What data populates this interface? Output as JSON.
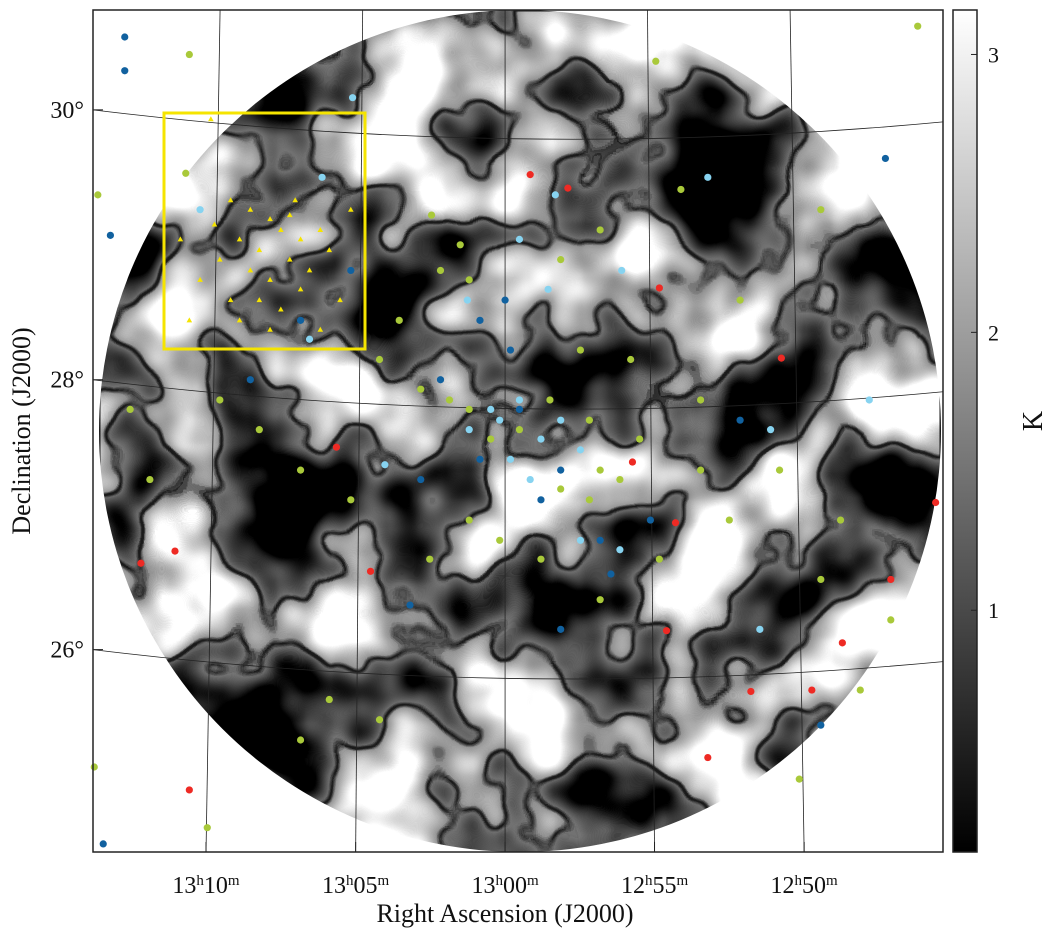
{
  "chart_data": {
    "type": "scatter",
    "x_label": "Right Ascension (J2000)",
    "y_label": "Declination (J2000)",
    "xlim": [
      13.2297,
      12.7559
    ],
    "ylim": [
      24.5,
      30.74
    ],
    "xticks": [
      {
        "value": 13.1667,
        "label": "13h10m"
      },
      {
        "value": 13.0833,
        "label": "13h05m"
      },
      {
        "value": 13.0,
        "label": "13h00m"
      },
      {
        "value": 12.9167,
        "label": "12h55m"
      },
      {
        "value": 12.8333,
        "label": "12h50m"
      }
    ],
    "yticks": [
      {
        "value": 26,
        "label": "26°"
      },
      {
        "value": 28,
        "label": "28°"
      },
      {
        "value": 30,
        "label": "30°"
      }
    ],
    "grid": true,
    "colorbar": {
      "label": "K",
      "lim": [
        0.13,
        3.16
      ],
      "ticks": [
        1,
        2,
        3
      ]
    },
    "series": [
      {
        "color": "#a9c93a",
        "marker": "circle",
        "x": [
          13.176,
          12.77,
          12.916,
          13.178,
          13.227,
          13.041,
          13.025,
          13.036,
          13.02,
          13.059,
          13.07,
          13.047,
          13.031,
          13.02,
          13.008,
          12.992,
          12.975,
          12.953,
          12.947,
          12.936,
          12.969,
          12.953,
          12.925,
          12.891,
          12.875,
          12.914,
          12.947,
          12.98,
          13.003,
          13.02,
          13.042,
          13.086,
          13.114,
          13.137,
          13.159,
          13.198,
          13.209,
          13.098,
          13.07,
          13.114,
          13.166,
          13.229,
          12.836,
          12.802,
          12.785,
          12.824,
          12.813,
          12.847,
          12.891,
          12.93,
          12.958,
          12.969,
          12.947,
          12.902,
          12.824,
          12.869
        ],
        "y": [
          30.41,
          30.62,
          30.36,
          29.53,
          29.37,
          29.22,
          29.0,
          28.81,
          28.74,
          28.44,
          28.15,
          27.93,
          27.85,
          27.78,
          27.56,
          27.63,
          27.85,
          27.7,
          27.33,
          27.26,
          27.19,
          27.11,
          27.56,
          27.33,
          26.96,
          26.67,
          26.37,
          26.67,
          26.81,
          26.96,
          26.67,
          27.11,
          27.33,
          27.63,
          27.85,
          27.26,
          27.78,
          25.63,
          25.48,
          25.33,
          24.68,
          25.13,
          25.04,
          25.7,
          26.22,
          26.52,
          26.96,
          27.33,
          27.85,
          28.15,
          28.22,
          28.89,
          29.11,
          29.41,
          29.26,
          28.59
        ]
      },
      {
        "color": "#87d3f0",
        "marker": "circle",
        "x": [
          13.085,
          13.102,
          12.887,
          12.972,
          12.992,
          12.935,
          13.021,
          12.976,
          12.992,
          13.003,
          13.02,
          12.98,
          12.997,
          13.008,
          12.969,
          12.958,
          12.986,
          12.936,
          12.958,
          12.852,
          12.797,
          12.858,
          13.109,
          13.17,
          13.067
        ],
        "y": [
          30.09,
          29.5,
          29.5,
          29.37,
          29.04,
          28.81,
          28.59,
          28.67,
          27.85,
          27.7,
          27.63,
          27.56,
          27.41,
          27.78,
          27.7,
          27.48,
          27.26,
          26.74,
          26.81,
          27.63,
          27.85,
          26.15,
          28.3,
          29.26,
          27.37
        ]
      },
      {
        "color": "#11619f",
        "marker": "circle",
        "x": [
          13.212,
          13.212,
          13.22,
          12.788,
          13.0,
          12.997,
          13.014,
          13.036,
          12.992,
          12.969,
          13.014,
          13.047,
          12.947,
          12.869,
          12.824,
          13.224,
          12.941,
          13.053,
          13.142,
          13.114,
          13.086,
          12.969,
          12.919,
          12.98
        ],
        "y": [
          30.54,
          30.29,
          29.07,
          29.64,
          28.59,
          28.22,
          28.44,
          28.0,
          27.78,
          27.33,
          27.41,
          27.26,
          26.81,
          27.7,
          25.44,
          24.56,
          26.56,
          26.33,
          28.0,
          28.44,
          28.81,
          26.15,
          26.96,
          27.11
        ]
      },
      {
        "color": "#ee2a24",
        "marker": "circle",
        "x": [
          12.986,
          12.965,
          12.914,
          12.846,
          13.094,
          12.929,
          12.905,
          13.184,
          13.203,
          13.075,
          12.91,
          12.812,
          12.863,
          12.829,
          12.887,
          13.176,
          12.76,
          12.785
        ],
        "y": [
          29.52,
          29.42,
          28.68,
          28.16,
          27.5,
          27.39,
          26.94,
          26.73,
          26.64,
          26.58,
          26.14,
          26.05,
          25.69,
          25.7,
          25.2,
          24.96,
          27.09,
          26.52
        ]
      },
      {
        "color": "#f5e400",
        "marker": "triangle",
        "x": [
          13.164,
          13.153,
          13.142,
          13.131,
          13.12,
          13.148,
          13.137,
          13.125,
          13.114,
          13.103,
          13.159,
          13.142,
          13.131,
          13.12,
          13.109,
          13.098,
          13.17,
          13.153,
          13.137,
          13.125,
          13.114,
          13.148,
          13.131,
          13.103,
          13.086,
          13.181,
          13.162,
          13.117,
          13.092,
          13.176
        ],
        "y": [
          29.93,
          29.33,
          29.26,
          29.19,
          29.22,
          29.04,
          28.96,
          29.11,
          29.04,
          29.11,
          28.89,
          28.81,
          28.74,
          28.89,
          28.81,
          28.96,
          28.74,
          28.59,
          28.59,
          28.52,
          28.67,
          28.44,
          28.37,
          28.37,
          29.26,
          29.04,
          29.15,
          29.33,
          28.59,
          28.44
        ]
      }
    ]
  }
}
